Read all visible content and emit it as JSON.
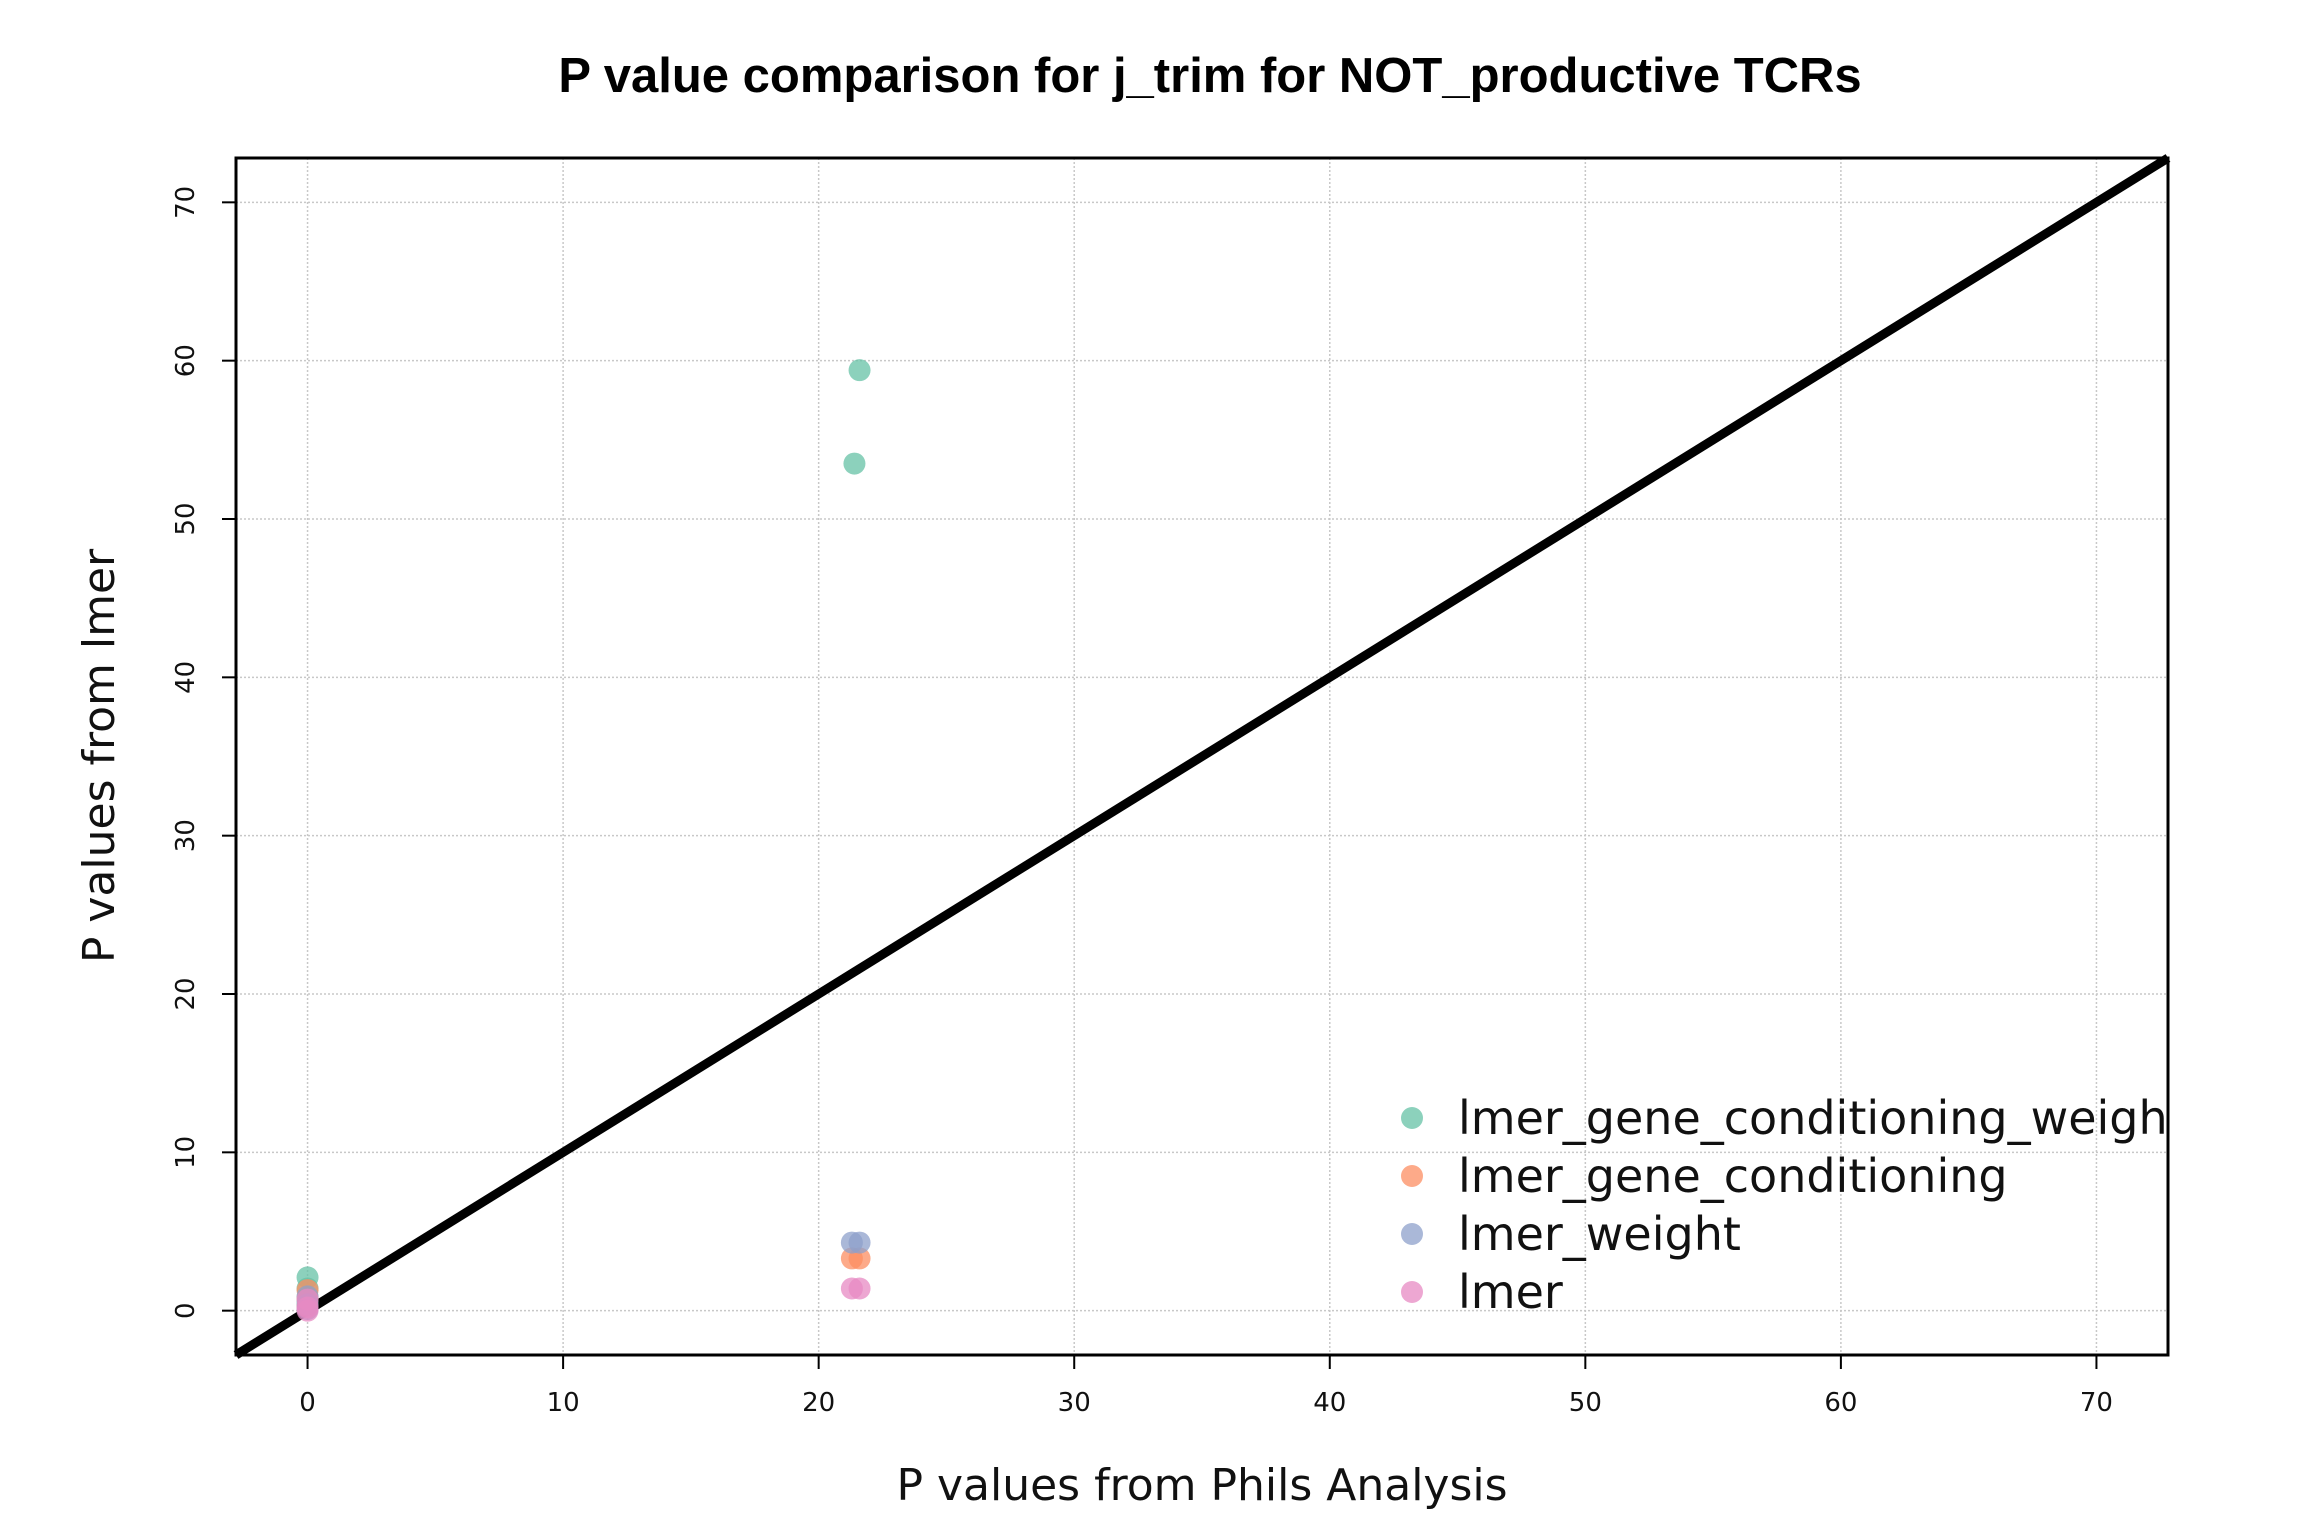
{
  "chart_data": {
    "type": "scatter",
    "title": "P value comparison for j_trim for NOT_productive TCRs",
    "xlabel": "P values from Phils Analysis",
    "ylabel": "P values from lmer",
    "xlim": [
      -2.8,
      72.8
    ],
    "ylim": [
      -2.8,
      72.8
    ],
    "xticks": [
      0,
      10,
      20,
      30,
      40,
      50,
      60,
      70
    ],
    "yticks": [
      0,
      10,
      20,
      30,
      40,
      50,
      60,
      70
    ],
    "grid": true,
    "legend_position": "bottom-right",
    "reference_line": {
      "type": "identity",
      "slope": 1,
      "intercept": 0,
      "color": "#000000"
    },
    "series": [
      {
        "name": "lmer_gene_conditioning_weight",
        "color": "#66c2a5",
        "points": [
          [
            0,
            2.1
          ],
          [
            0,
            1.4
          ],
          [
            0,
            0.6
          ],
          [
            21.4,
            53.5
          ],
          [
            21.6,
            59.4
          ]
        ]
      },
      {
        "name": "lmer_gene_conditioning",
        "color": "#fc8d62",
        "points": [
          [
            0,
            1.3
          ],
          [
            0,
            0.8
          ],
          [
            0,
            0.3
          ],
          [
            21.3,
            3.3
          ],
          [
            21.6,
            3.3
          ]
        ]
      },
      {
        "name": "lmer_weight",
        "color": "#8da0cb",
        "points": [
          [
            0,
            0.9
          ],
          [
            0,
            0.4
          ],
          [
            0,
            0.1
          ],
          [
            21.3,
            4.3
          ],
          [
            21.6,
            4.3
          ]
        ]
      },
      {
        "name": "lmer",
        "color": "#e78ac3",
        "points": [
          [
            0,
            0.7
          ],
          [
            0,
            0.2
          ],
          [
            0,
            0.0
          ],
          [
            21.3,
            1.4
          ],
          [
            21.6,
            1.4
          ]
        ]
      }
    ]
  }
}
